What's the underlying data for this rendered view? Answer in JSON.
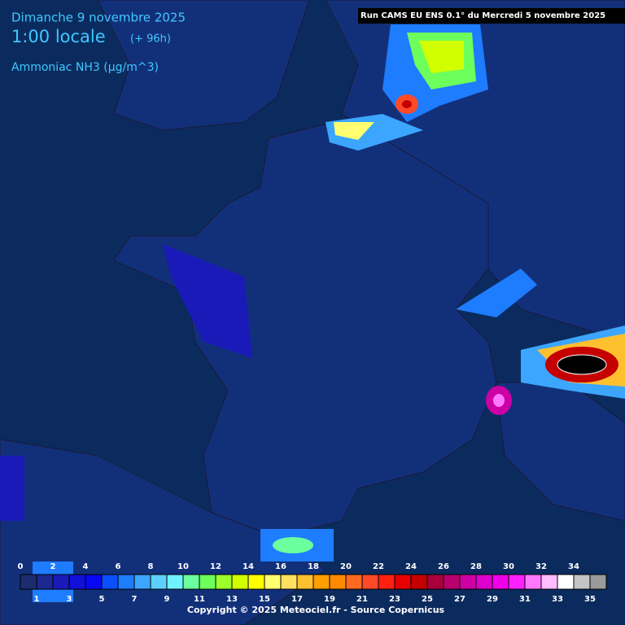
{
  "header": {
    "date": "Dimanche 9 novembre 2025",
    "time": "1:00 locale",
    "lead": "(+ 96h)",
    "variable": "Ammoniac NH3 (µg/m^3)",
    "run": "Run CAMS EU ENS 0.1° du Mercredi 5 novembre 2025"
  },
  "legend": {
    "labels": [
      0,
      1,
      2,
      3,
      4,
      5,
      6,
      7,
      8,
      9,
      10,
      11,
      12,
      13,
      14,
      15,
      16,
      17,
      18,
      19,
      20,
      21,
      22,
      23,
      24,
      25,
      26,
      27,
      28,
      29,
      30,
      31,
      32,
      33,
      34,
      35
    ],
    "colors": [
      "#1c2c6e",
      "#1c2892",
      "#1a1ab8",
      "#1010d8",
      "#0808f4",
      "#0a50ff",
      "#1e7cff",
      "#3ca6ff",
      "#5ccfff",
      "#6ef2ff",
      "#6cff9e",
      "#6cff5c",
      "#9cff2c",
      "#d2ff00",
      "#ffff00",
      "#ffff70",
      "#ffe060",
      "#ffc030",
      "#ffa000",
      "#ff8a00",
      "#ff6a20",
      "#ff4a28",
      "#ff2010",
      "#e60000",
      "#c40000",
      "#a8003c",
      "#b8006e",
      "#cc00a4",
      "#de00cc",
      "#f000e8",
      "#ff20ff",
      "#ff78ff",
      "#ffbcff",
      "#ffffff",
      "#c4c4c4",
      "#9a9a9a"
    ]
  },
  "footer": {
    "copyright": "Copyright © 2025 Meteociel.fr - Source Copernicus"
  }
}
